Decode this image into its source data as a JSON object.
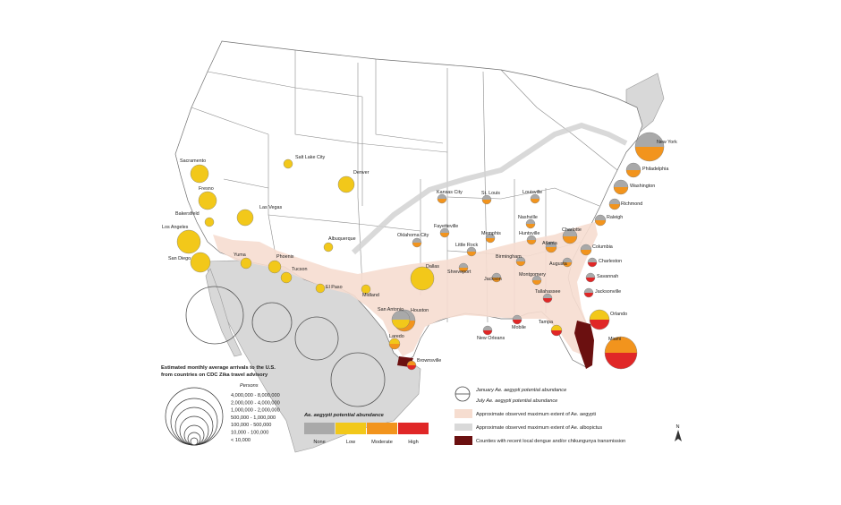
{
  "title": "Ae. aegypti potential abundance and Zika travel arrivals map",
  "colors": {
    "none": "#a9a9a9",
    "low": "#f2c81a",
    "moderate": "#f2941d",
    "high": "#e02727",
    "aegypti_extent": "#f6ddd0",
    "albopictus_extent": "#d9d9d9",
    "transmission": "#6b1010"
  },
  "cities": [
    {
      "name": "New York",
      "jan": "none",
      "jul": "moderate"
    },
    {
      "name": "Philadelphia",
      "jan": "none",
      "jul": "moderate"
    },
    {
      "name": "Washington",
      "jan": "none",
      "jul": "moderate"
    },
    {
      "name": "Richmond",
      "jan": "none",
      "jul": "moderate"
    },
    {
      "name": "Raleigh",
      "jan": "none",
      "jul": "moderate"
    },
    {
      "name": "Charlotte",
      "jan": "none",
      "jul": "moderate"
    },
    {
      "name": "Columbia",
      "jan": "none",
      "jul": "moderate"
    },
    {
      "name": "Atlanta",
      "jan": "none",
      "jul": "moderate"
    },
    {
      "name": "Augusta",
      "jan": "none",
      "jul": "moderate"
    },
    {
      "name": "Charleston",
      "jan": "none",
      "jul": "high"
    },
    {
      "name": "Savannah",
      "jan": "none",
      "jul": "high"
    },
    {
      "name": "Jacksonville",
      "jan": "none",
      "jul": "high"
    },
    {
      "name": "Orlando",
      "jan": "low",
      "jul": "high"
    },
    {
      "name": "Tampa",
      "jan": "low",
      "jul": "high"
    },
    {
      "name": "Miami",
      "jan": "moderate",
      "jul": "high"
    },
    {
      "name": "Tallahassee",
      "jan": "none",
      "jul": "high"
    },
    {
      "name": "Mobile",
      "jan": "none",
      "jul": "high"
    },
    {
      "name": "New Orleans",
      "jan": "none",
      "jul": "high"
    },
    {
      "name": "Montgomery",
      "jan": "none",
      "jul": "moderate"
    },
    {
      "name": "Birmingham",
      "jan": "none",
      "jul": "moderate"
    },
    {
      "name": "Jackson",
      "jan": "none",
      "jul": "moderate"
    },
    {
      "name": "Huntsville",
      "jan": "none",
      "jul": "moderate"
    },
    {
      "name": "Nashville",
      "jan": "none",
      "jul": "moderate"
    },
    {
      "name": "Memphis",
      "jan": "none",
      "jul": "moderate"
    },
    {
      "name": "Little Rock",
      "jan": "none",
      "jul": "moderate"
    },
    {
      "name": "Shreveport",
      "jan": "none",
      "jul": "moderate"
    },
    {
      "name": "Louisville",
      "jan": "none",
      "jul": "moderate"
    },
    {
      "name": "St. Louis",
      "jan": "none",
      "jul": "moderate"
    },
    {
      "name": "Kansas City",
      "jan": "none",
      "jul": "moderate"
    },
    {
      "name": "Fayetteville",
      "jan": "none",
      "jul": "moderate"
    },
    {
      "name": "Oklahoma City",
      "jan": "none",
      "jul": "moderate"
    },
    {
      "name": "Dallas",
      "jan": "low",
      "jul": "low"
    },
    {
      "name": "Houston",
      "jan": "none",
      "jul": "moderate"
    },
    {
      "name": "San Antonio",
      "jan": "none",
      "jul": "low"
    },
    {
      "name": "Laredo",
      "jan": "low",
      "jul": "moderate"
    },
    {
      "name": "Brownsville",
      "jan": "moderate",
      "jul": "high"
    },
    {
      "name": "Midland",
      "jan": "low",
      "jul": "low"
    },
    {
      "name": "El Paso",
      "jan": "low",
      "jul": "low"
    },
    {
      "name": "Albuquerque",
      "jan": "low",
      "jul": "low"
    },
    {
      "name": "Denver",
      "jan": "low",
      "jul": "low"
    },
    {
      "name": "Salt Lake City",
      "jan": "low",
      "jul": "low"
    },
    {
      "name": "Tucson",
      "jan": "low",
      "jul": "low"
    },
    {
      "name": "Phoenix",
      "jan": "low",
      "jul": "low"
    },
    {
      "name": "Yuma",
      "jan": "low",
      "jul": "low"
    },
    {
      "name": "Las Vegas",
      "jan": "low",
      "jul": "low"
    },
    {
      "name": "San Diego",
      "jan": "low",
      "jul": "low"
    },
    {
      "name": "Los Angeles",
      "jan": "low",
      "jul": "low"
    },
    {
      "name": "Bakersfield",
      "jan": "low",
      "jul": "low"
    },
    {
      "name": "Fresno",
      "jan": "low",
      "jul": "low"
    },
    {
      "name": "Sacramento",
      "jan": "low",
      "jul": "low"
    }
  ],
  "arrivals_legend": {
    "title_line1": "Estimated monthly average arrivals to the U.S.",
    "title_line2": "from countries on CDC Zika travel advisory",
    "unit": "Persons",
    "classes": [
      "4,000,000 - 8,000,000",
      "2,000,000 - 4,000,000",
      "1,000,000 - 2,000,000",
      "500,000 - 1,000,000",
      "100,000 - 500,000",
      "10,000 - 100,000",
      "< 10,000"
    ]
  },
  "abundance_legend": {
    "title": "Ae. aegypti potential abundance",
    "levels": [
      "None",
      "Low",
      "Moderate",
      "High"
    ]
  },
  "key_legend": {
    "january": "January Ae. aegypti potential abundance",
    "july": "July Ae. aegypti potential abundance",
    "aegypti_extent": "Approximate observed maximum extent of Ae. aegypti",
    "albopictus_extent": "Approximate observed maximum extent of Ae. albopictus",
    "transmission": "Counties with recent local dengue and/or chikungunya transmission"
  },
  "north_arrow": "N"
}
